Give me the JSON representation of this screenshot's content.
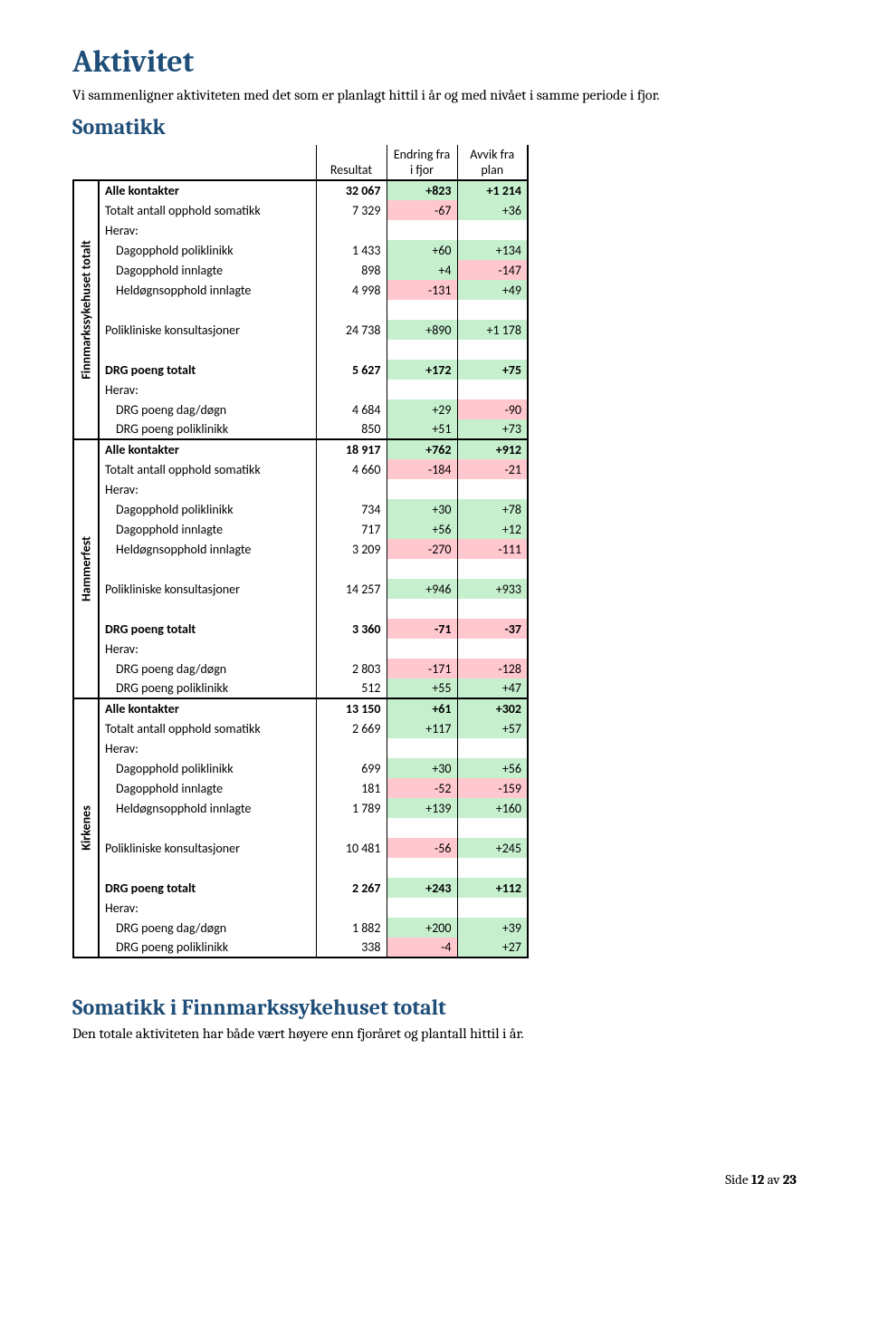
{
  "title": "Aktivitet",
  "intro": "Vi sammenligner aktiviteten med det som er planlagt hittil i år og med nivået i samme periode i fjor.",
  "subtitle": "Somatikk",
  "columns": [
    "Resultat",
    "Endring fra i fjor",
    "Avvik fra plan"
  ],
  "colors": {
    "green": "#c6efce",
    "red": "#ffc7ce"
  },
  "sections": [
    {
      "group": "Finnmarkssykehuset totalt",
      "rows": [
        {
          "label": "Alle kontakter",
          "bold": true,
          "vals": [
            "32 067",
            "+823",
            "+1 214"
          ],
          "bg": [
            "",
            "g",
            "g"
          ]
        },
        {
          "label": "Totalt antall opphold somatikk",
          "vals": [
            "7 329",
            "-67",
            "+36"
          ],
          "bg": [
            "",
            "r",
            "g"
          ]
        },
        {
          "label": "Herav:",
          "vals": [
            "",
            "",
            ""
          ],
          "bg": [
            "",
            "",
            ""
          ]
        },
        {
          "label": "Dagopphold poliklinikk",
          "indent": true,
          "vals": [
            "1 433",
            "+60",
            "+134"
          ],
          "bg": [
            "",
            "g",
            "g"
          ]
        },
        {
          "label": "Dagopphold innlagte",
          "indent": true,
          "vals": [
            "898",
            "+4",
            "-147"
          ],
          "bg": [
            "",
            "g",
            "r"
          ]
        },
        {
          "label": "Heldøgnsopphold innlagte",
          "indent": true,
          "vals": [
            "4 998",
            "-131",
            "+49"
          ],
          "bg": [
            "",
            "r",
            "g"
          ]
        },
        {
          "label": "",
          "vals": [
            "",
            "",
            ""
          ],
          "bg": [
            "",
            "",
            ""
          ]
        },
        {
          "label": "Polikliniske konsultasjoner",
          "vals": [
            "24 738",
            "+890",
            "+1 178"
          ],
          "bg": [
            "",
            "g",
            "g"
          ]
        },
        {
          "label": "",
          "vals": [
            "",
            "",
            ""
          ],
          "bg": [
            "",
            "",
            ""
          ]
        },
        {
          "label": "DRG poeng totalt",
          "bold": true,
          "vals": [
            "5 627",
            "+172",
            "+75"
          ],
          "bg": [
            "",
            "g",
            "g"
          ]
        },
        {
          "label": "Herav:",
          "vals": [
            "",
            "",
            ""
          ],
          "bg": [
            "",
            "",
            ""
          ]
        },
        {
          "label": "DRG poeng dag/døgn",
          "indent": true,
          "vals": [
            "4 684",
            "+29",
            "-90"
          ],
          "bg": [
            "",
            "g",
            "r"
          ]
        },
        {
          "label": "DRG poeng poliklinikk",
          "indent": true,
          "vals": [
            "850",
            "+51",
            "+73"
          ],
          "bg": [
            "",
            "g",
            "g"
          ]
        }
      ]
    },
    {
      "group": "Hammerfest",
      "rows": [
        {
          "label": "Alle kontakter",
          "bold": true,
          "vals": [
            "18 917",
            "+762",
            "+912"
          ],
          "bg": [
            "",
            "g",
            "g"
          ]
        },
        {
          "label": "Totalt antall opphold somatikk",
          "vals": [
            "4 660",
            "-184",
            "-21"
          ],
          "bg": [
            "",
            "r",
            "r"
          ]
        },
        {
          "label": "Herav:",
          "vals": [
            "",
            "",
            ""
          ],
          "bg": [
            "",
            "",
            ""
          ]
        },
        {
          "label": "Dagopphold poliklinikk",
          "indent": true,
          "vals": [
            "734",
            "+30",
            "+78"
          ],
          "bg": [
            "",
            "g",
            "g"
          ]
        },
        {
          "label": "Dagopphold innlagte",
          "indent": true,
          "vals": [
            "717",
            "+56",
            "+12"
          ],
          "bg": [
            "",
            "g",
            "g"
          ]
        },
        {
          "label": "Heldøgnsopphold innlagte",
          "indent": true,
          "vals": [
            "3 209",
            "-270",
            "-111"
          ],
          "bg": [
            "",
            "r",
            "r"
          ]
        },
        {
          "label": "",
          "vals": [
            "",
            "",
            ""
          ],
          "bg": [
            "",
            "",
            ""
          ]
        },
        {
          "label": "Polikliniske konsultasjoner",
          "vals": [
            "14 257",
            "+946",
            "+933"
          ],
          "bg": [
            "",
            "g",
            "g"
          ]
        },
        {
          "label": "",
          "vals": [
            "",
            "",
            ""
          ],
          "bg": [
            "",
            "",
            ""
          ]
        },
        {
          "label": "DRG poeng totalt",
          "bold": true,
          "vals": [
            "3 360",
            "-71",
            "-37"
          ],
          "bg": [
            "",
            "r",
            "r"
          ]
        },
        {
          "label": "Herav:",
          "vals": [
            "",
            "",
            ""
          ],
          "bg": [
            "",
            "",
            ""
          ]
        },
        {
          "label": "DRG poeng dag/døgn",
          "indent": true,
          "vals": [
            "2 803",
            "-171",
            "-128"
          ],
          "bg": [
            "",
            "r",
            "r"
          ]
        },
        {
          "label": "DRG poeng poliklinikk",
          "indent": true,
          "vals": [
            "512",
            "+55",
            "+47"
          ],
          "bg": [
            "",
            "g",
            "g"
          ]
        }
      ]
    },
    {
      "group": "Kirkenes",
      "rows": [
        {
          "label": "Alle kontakter",
          "bold": true,
          "vals": [
            "13 150",
            "+61",
            "+302"
          ],
          "bg": [
            "",
            "g",
            "g"
          ]
        },
        {
          "label": "Totalt antall opphold somatikk",
          "vals": [
            "2 669",
            "+117",
            "+57"
          ],
          "bg": [
            "",
            "g",
            "g"
          ]
        },
        {
          "label": "Herav:",
          "vals": [
            "",
            "",
            ""
          ],
          "bg": [
            "",
            "",
            ""
          ]
        },
        {
          "label": "Dagopphold poliklinikk",
          "indent": true,
          "vals": [
            "699",
            "+30",
            "+56"
          ],
          "bg": [
            "",
            "g",
            "g"
          ]
        },
        {
          "label": "Dagopphold innlagte",
          "indent": true,
          "vals": [
            "181",
            "-52",
            "-159"
          ],
          "bg": [
            "",
            "r",
            "r"
          ]
        },
        {
          "label": "Heldøgnsopphold innlagte",
          "indent": true,
          "vals": [
            "1 789",
            "+139",
            "+160"
          ],
          "bg": [
            "",
            "g",
            "g"
          ]
        },
        {
          "label": "",
          "vals": [
            "",
            "",
            ""
          ],
          "bg": [
            "",
            "",
            ""
          ]
        },
        {
          "label": "Polikliniske konsultasjoner",
          "vals": [
            "10 481",
            "-56",
            "+245"
          ],
          "bg": [
            "",
            "r",
            "g"
          ]
        },
        {
          "label": "",
          "vals": [
            "",
            "",
            ""
          ],
          "bg": [
            "",
            "",
            ""
          ]
        },
        {
          "label": "DRG poeng totalt",
          "bold": true,
          "vals": [
            "2 267",
            "+243",
            "+112"
          ],
          "bg": [
            "",
            "g",
            "g"
          ]
        },
        {
          "label": "Herav:",
          "vals": [
            "",
            "",
            ""
          ],
          "bg": [
            "",
            "",
            ""
          ]
        },
        {
          "label": "DRG poeng dag/døgn",
          "indent": true,
          "vals": [
            "1 882",
            "+200",
            "+39"
          ],
          "bg": [
            "",
            "g",
            "g"
          ]
        },
        {
          "label": "DRG poeng poliklinikk",
          "indent": true,
          "vals": [
            "338",
            "-4",
            "+27"
          ],
          "bg": [
            "",
            "r",
            "g"
          ]
        }
      ]
    }
  ],
  "summary_title": "Somatikk i Finnmarkssykehuset totalt",
  "summary_text": "Den totale aktiviteten har både vært høyere enn fjoråret og plantall hittil i år.",
  "footer": {
    "prefix": "Side ",
    "page": "12",
    "mid": " av ",
    "total": "23"
  }
}
